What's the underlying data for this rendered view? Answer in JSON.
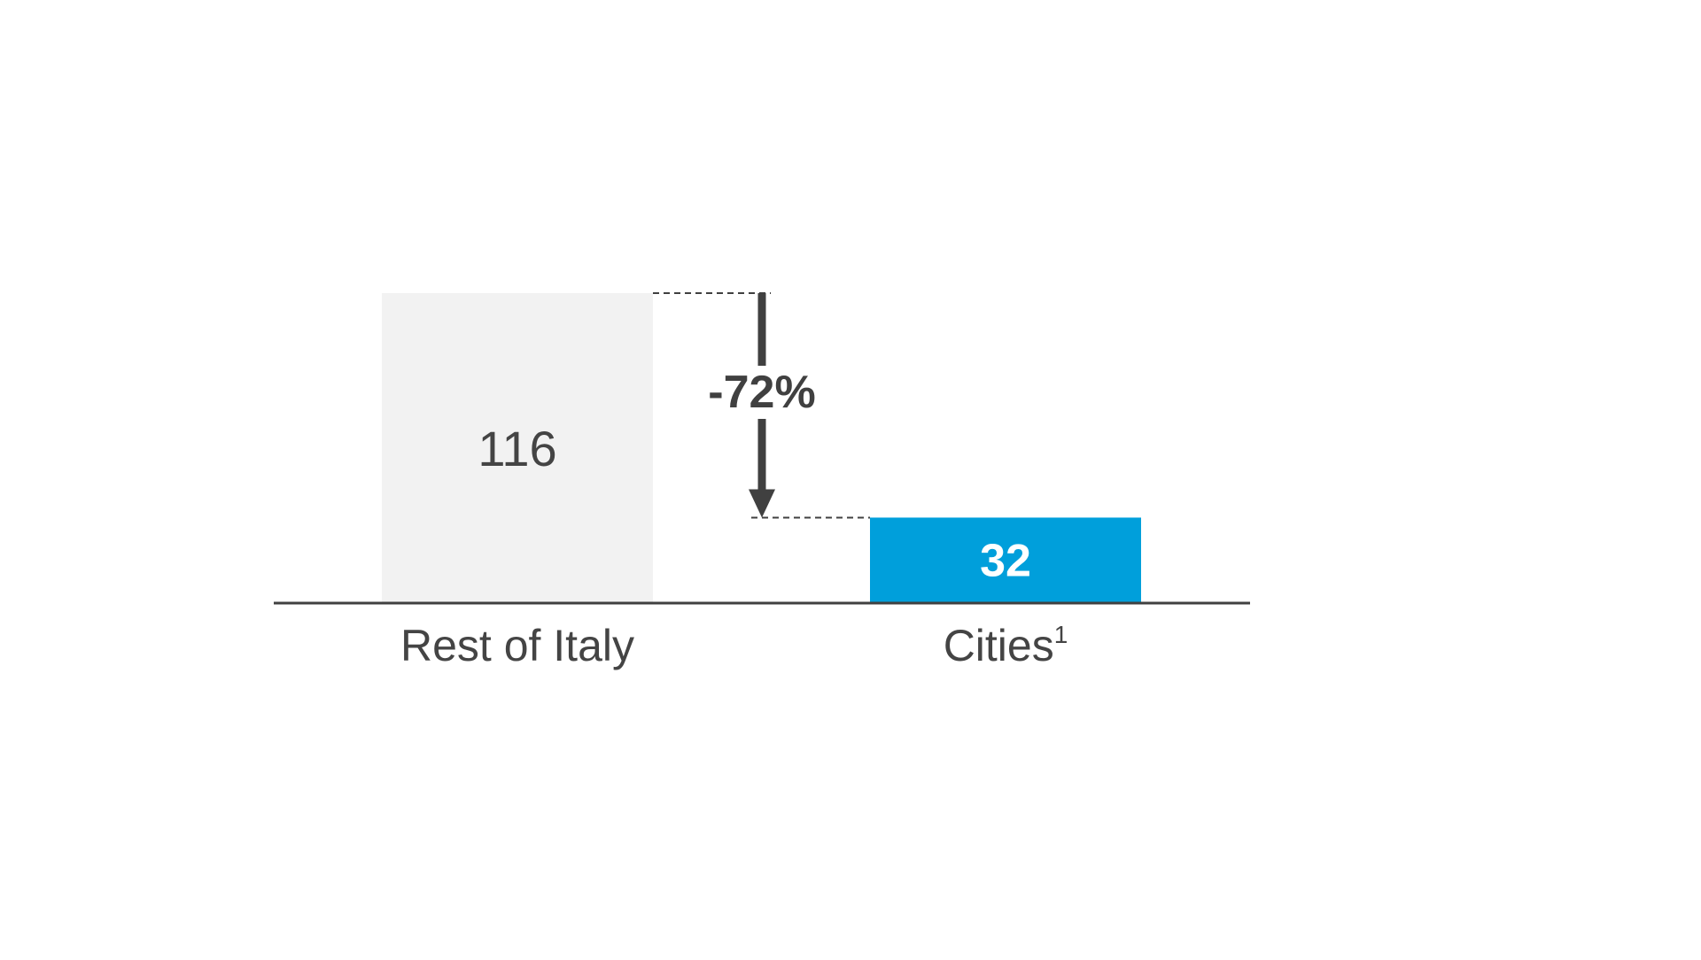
{
  "chart_data": {
    "type": "bar",
    "categories": [
      "Rest of Italy",
      "Cities"
    ],
    "category_footnotes": [
      "",
      "1"
    ],
    "values": [
      116,
      32
    ],
    "data_labels": [
      "116",
      "32"
    ],
    "bar_colors": [
      "#f2f2f2",
      "#009fdb"
    ],
    "label_colors": [
      "#444444",
      "#ffffff"
    ],
    "annotation": "-72%",
    "annotation_color": "#404040",
    "axis_color": "#404040",
    "grid": false,
    "title": "",
    "xlabel": "",
    "ylabel": ""
  }
}
